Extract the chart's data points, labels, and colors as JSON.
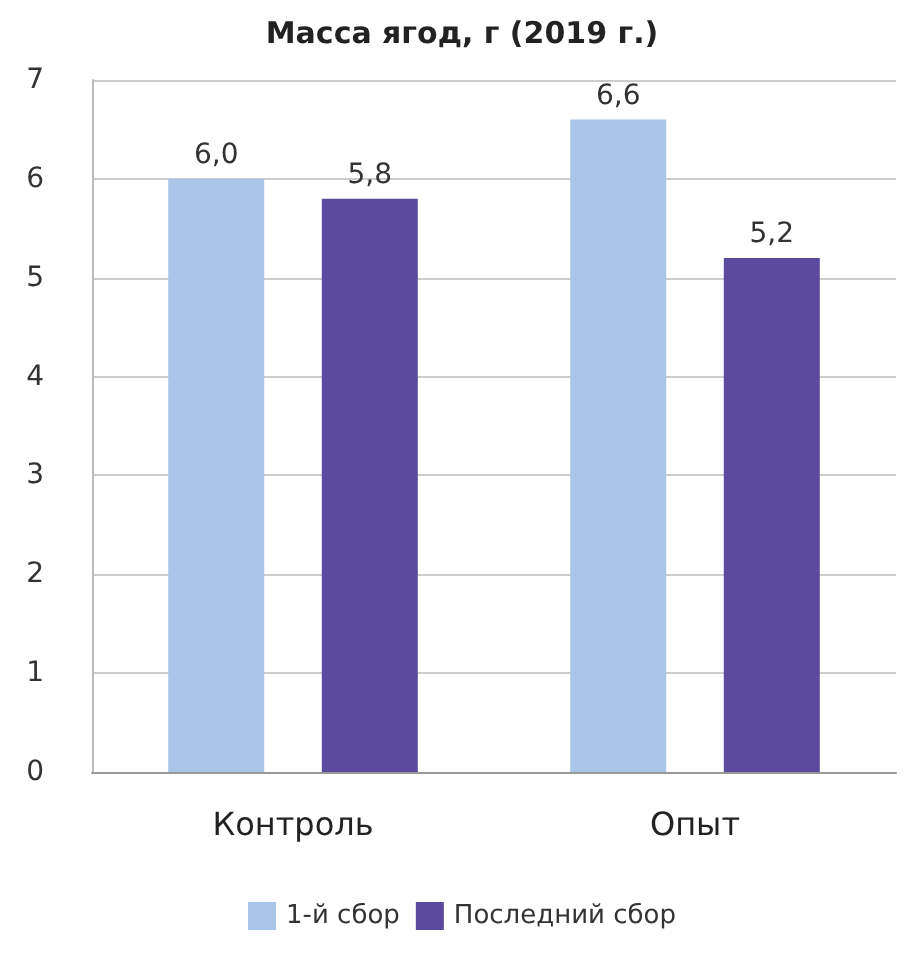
{
  "chart_data": {
    "type": "bar",
    "title": "Масса ягод, г (2019 г.)",
    "categories": [
      "Контроль",
      "Опыт"
    ],
    "series": [
      {
        "name": "1-й сбор",
        "color": "#a9c6ea",
        "values": [
          6.0,
          6.6
        ],
        "value_labels": [
          "6,0",
          "6,6"
        ]
      },
      {
        "name": "Последний сбор",
        "color": "#5b4a9e",
        "values": [
          5.8,
          5.2
        ],
        "value_labels": [
          "5,8",
          "5,2"
        ]
      }
    ],
    "ylim": [
      0,
      7
    ],
    "yticks": [
      0,
      1,
      2,
      3,
      4,
      5,
      6,
      7
    ],
    "grid": "y",
    "legend": "bottom"
  }
}
